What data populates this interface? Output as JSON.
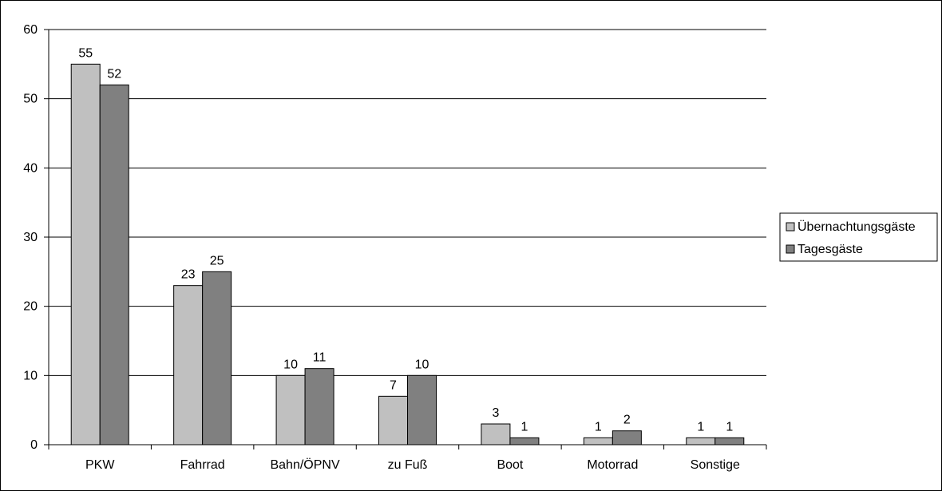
{
  "chart_data": {
    "type": "bar",
    "categories": [
      "PKW",
      "Fahrrad",
      "Bahn/ÖPNV",
      "zu Fuß",
      "Boot",
      "Motorrad",
      "Sonstige"
    ],
    "series": [
      {
        "name": "Übernachtungsgäste",
        "values": [
          55,
          23,
          10,
          7,
          3,
          1,
          1
        ],
        "color": "#c0c0c0"
      },
      {
        "name": "Tagesgäste",
        "values": [
          52,
          25,
          11,
          10,
          1,
          2,
          1
        ],
        "color": "#808080"
      }
    ],
    "ylim": [
      0,
      60
    ],
    "yticks": [
      0,
      10,
      20,
      30,
      40,
      50,
      60
    ],
    "grid": true,
    "legend_position": "right",
    "data_labels": true
  }
}
